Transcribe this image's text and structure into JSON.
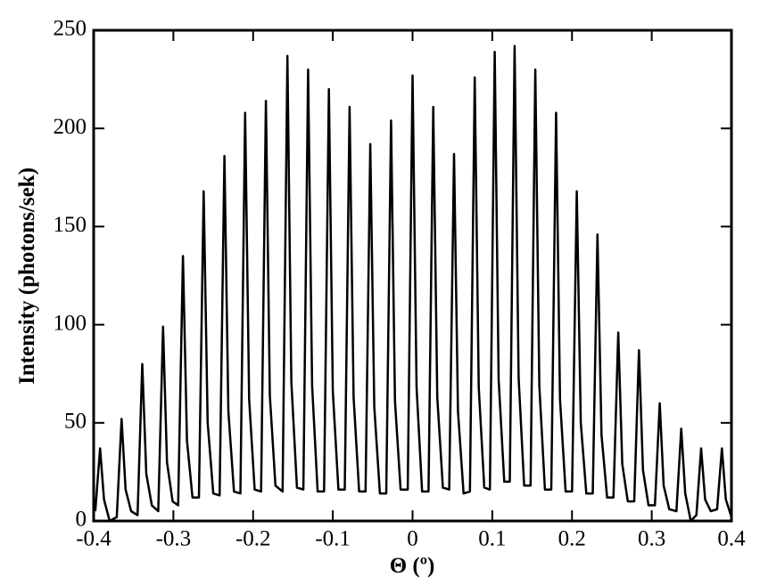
{
  "chart_data": {
    "type": "line",
    "xlabel": "Θ (º)",
    "ylabel": "Intensity (photons/sek)",
    "xlim": [
      -0.4,
      0.4
    ],
    "ylim": [
      0,
      250
    ],
    "xticks": [
      -0.4,
      -0.3,
      -0.2,
      -0.1,
      0,
      0.1,
      0.2,
      0.3,
      0.4
    ],
    "yticks": [
      0,
      50,
      100,
      150,
      200,
      250
    ],
    "series": [
      {
        "color": "#000000",
        "x": [
          -0.398,
          -0.392,
          -0.387,
          -0.38,
          -0.371,
          -0.365,
          -0.36,
          -0.353,
          -0.345,
          -0.339,
          -0.334,
          -0.327,
          -0.319,
          -0.313,
          -0.308,
          -0.301,
          -0.294,
          -0.288,
          -0.283,
          -0.276,
          -0.268,
          -0.262,
          -0.257,
          -0.25,
          -0.242,
          -0.236,
          -0.231,
          -0.224,
          -0.216,
          -0.21,
          -0.205,
          -0.198,
          -0.19,
          -0.184,
          -0.179,
          -0.172,
          -0.163,
          -0.157,
          -0.152,
          -0.145,
          -0.137,
          -0.131,
          -0.126,
          -0.119,
          -0.111,
          -0.105,
          -0.1,
          -0.093,
          -0.085,
          -0.079,
          -0.074,
          -0.067,
          -0.059,
          -0.053,
          -0.048,
          -0.041,
          -0.033,
          -0.027,
          -0.022,
          -0.015,
          -0.006,
          0.0,
          0.005,
          0.012,
          0.02,
          0.026,
          0.031,
          0.038,
          0.046,
          0.052,
          0.057,
          0.064,
          0.072,
          0.078,
          0.083,
          0.09,
          0.097,
          0.103,
          0.108,
          0.115,
          0.122,
          0.128,
          0.133,
          0.14,
          0.148,
          0.154,
          0.159,
          0.166,
          0.174,
          0.18,
          0.185,
          0.192,
          0.2,
          0.206,
          0.211,
          0.218,
          0.226,
          0.232,
          0.237,
          0.244,
          0.252,
          0.258,
          0.263,
          0.27,
          0.278,
          0.284,
          0.289,
          0.296,
          0.304,
          0.31,
          0.315,
          0.322,
          0.331,
          0.337,
          0.342,
          0.349,
          0.356,
          0.362,
          0.367,
          0.374,
          0.382,
          0.388,
          0.393,
          0.4
        ],
        "values": [
          5,
          37,
          11,
          0,
          2,
          52,
          16,
          5,
          3,
          80,
          24,
          8,
          5,
          99,
          30,
          10,
          8,
          135,
          41,
          12,
          12,
          168,
          50,
          14,
          13,
          186,
          56,
          15,
          14,
          208,
          62,
          16,
          15,
          214,
          64,
          18,
          15,
          237,
          71,
          17,
          16,
          230,
          69,
          15,
          15,
          220,
          66,
          16,
          16,
          211,
          63,
          15,
          15,
          192,
          58,
          14,
          14,
          204,
          61,
          16,
          16,
          227,
          68,
          15,
          15,
          211,
          63,
          17,
          16,
          187,
          56,
          14,
          15,
          226,
          68,
          17,
          16,
          239,
          72,
          20,
          20,
          242,
          73,
          18,
          18,
          230,
          69,
          16,
          16,
          208,
          62,
          15,
          15,
          168,
          50,
          14,
          14,
          146,
          44,
          12,
          12,
          96,
          29,
          10,
          10,
          87,
          26,
          8,
          8,
          60,
          18,
          6,
          5,
          47,
          14,
          0,
          3,
          37,
          11,
          5,
          6,
          37,
          11,
          2
        ]
      }
    ]
  }
}
